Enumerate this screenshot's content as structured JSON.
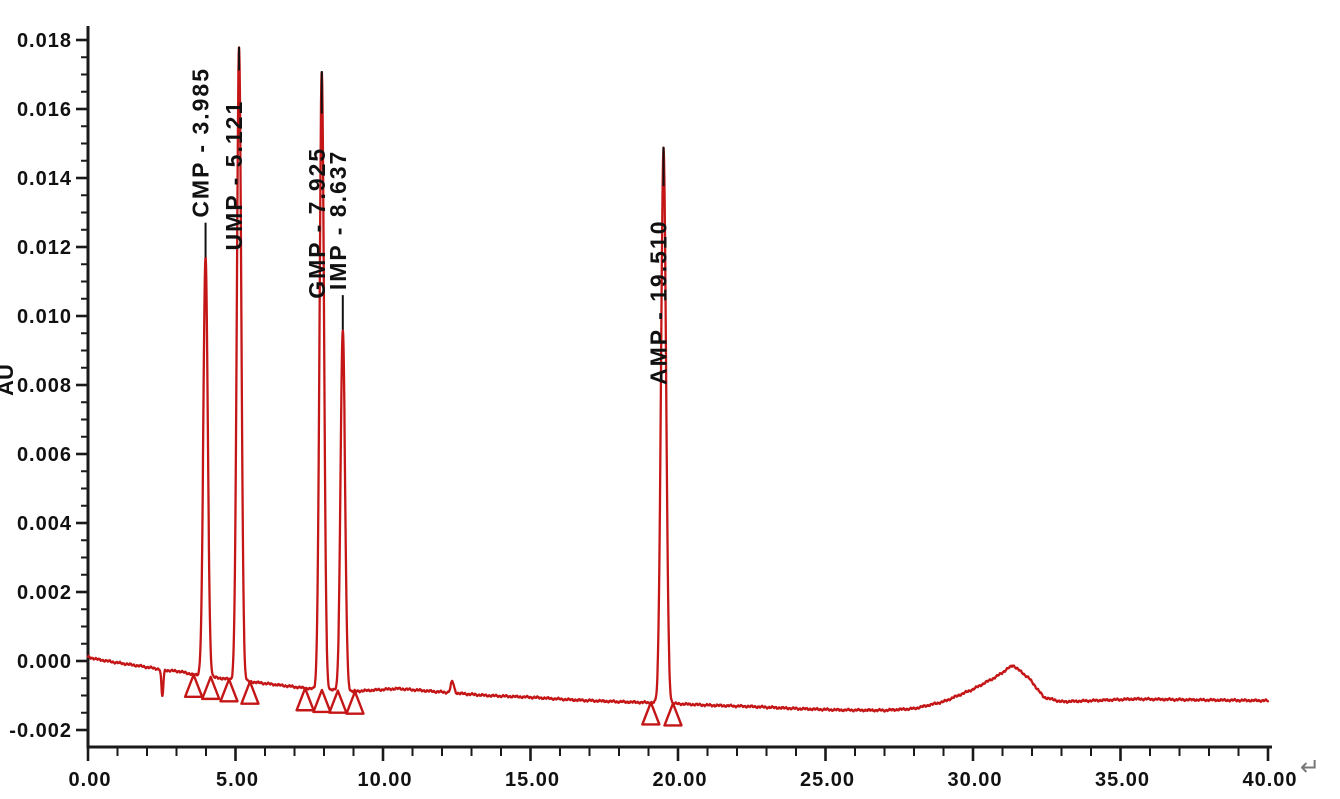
{
  "chart_data": {
    "type": "line",
    "subtype": "hplc-chromatogram",
    "title": "",
    "xlabel": "",
    "ylabel": "AU",
    "xlim": [
      0,
      40
    ],
    "ylim": [
      -0.002,
      0.018
    ],
    "grid": false,
    "legend": "none",
    "trace_color": "#c41616",
    "axis_color": "#1a1a1a",
    "label_color": "#111111",
    "return_mark_color": "#777777",
    "x_ticks": {
      "major_values": [
        0,
        5,
        10,
        15,
        20,
        25,
        30,
        35,
        40
      ],
      "major_labels": [
        "0.00",
        "5.00",
        "10.00",
        "15.00",
        "20.00",
        "25.00",
        "30.00",
        "35.00",
        "40.00"
      ],
      "minor_step": 1
    },
    "y_ticks": {
      "major_values": [
        -0.002,
        0.0,
        0.002,
        0.004,
        0.006,
        0.008,
        0.01,
        0.012,
        0.014,
        0.016,
        0.018
      ],
      "major_labels": [
        "-0.002",
        "0.000",
        "0.002",
        "0.004",
        "0.006",
        "0.008",
        "0.010",
        "0.012",
        "0.014",
        "0.016",
        "0.018"
      ],
      "minor_step": 0.0005
    },
    "peaks": [
      {
        "name": "CMP",
        "label": "CMP - 3.985",
        "rt": 3.985,
        "apex_au": 0.0117,
        "sigma_min": 0.075,
        "label_band_au": [
          0.01285,
          0.0178
        ],
        "leader": "from-bottom"
      },
      {
        "name": "UMP",
        "label": "UMP - 5.121",
        "rt": 5.121,
        "apex_au": 0.0178,
        "sigma_min": 0.075,
        "label_band_au": [
          0.0119,
          0.017
        ],
        "leader": "from-top"
      },
      {
        "name": "GMP",
        "label": "GMP - 7.925",
        "rt": 7.925,
        "apex_au": 0.0171,
        "sigma_min": 0.075,
        "label_band_au": [
          0.0105,
          0.01575
        ],
        "leader": "from-top"
      },
      {
        "name": "IMP",
        "label": "IMP - 8.637",
        "rt": 8.637,
        "apex_au": 0.0096,
        "sigma_min": 0.075,
        "label_band_au": [
          0.01075,
          0.0156
        ],
        "leader": "from-bottom"
      },
      {
        "name": "AMP",
        "label": "AMP - 19.510",
        "rt": 19.51,
        "apex_au": 0.0149,
        "sigma_min": 0.085,
        "label_band_au": [
          0.008,
          0.01365
        ],
        "leader": "from-top"
      }
    ],
    "baseline_anchors": [
      [
        0,
        0.00012
      ],
      [
        0.3,
        5e-05
      ],
      [
        1.0,
        -5e-05
      ],
      [
        1.8,
        -0.00015
      ],
      [
        2.3,
        -0.00022
      ],
      [
        2.75,
        -0.00028
      ],
      [
        3.1,
        -0.0003
      ],
      [
        3.6,
        -0.0004
      ],
      [
        4.5,
        -0.0005
      ],
      [
        5.5,
        -0.0006
      ],
      [
        6.5,
        -0.0007
      ],
      [
        7.5,
        -0.0008
      ],
      [
        9.0,
        -0.00088
      ],
      [
        10.5,
        -0.0008
      ],
      [
        12.0,
        -0.0009
      ],
      [
        13.5,
        -0.001
      ],
      [
        15.0,
        -0.00105
      ],
      [
        16.5,
        -0.00113
      ],
      [
        18.0,
        -0.00118
      ],
      [
        19.5,
        -0.00122
      ],
      [
        21.0,
        -0.00128
      ],
      [
        22.5,
        -0.00132
      ],
      [
        24.0,
        -0.00138
      ],
      [
        25.5,
        -0.00142
      ],
      [
        27.0,
        -0.00143
      ],
      [
        28.0,
        -0.00138
      ],
      [
        29.0,
        -0.00118
      ],
      [
        30.0,
        -0.00082
      ],
      [
        30.8,
        -0.00045
      ],
      [
        31.35,
        -0.00012
      ],
      [
        31.9,
        -0.0005
      ],
      [
        32.4,
        -0.00105
      ],
      [
        33.0,
        -0.00118
      ],
      [
        34.0,
        -0.00115
      ],
      [
        35.5,
        -0.0011
      ],
      [
        37.0,
        -0.00112
      ],
      [
        40.0,
        -0.00115
      ]
    ],
    "baseline_artifacts": [
      {
        "t": 2.52,
        "height_au": -0.00078,
        "sigma_min": 0.033,
        "desc": "sharp negative dip"
      },
      {
        "t": 12.35,
        "height_au": 0.00033,
        "sigma_min": 0.055,
        "desc": "small unlabeled bump"
      }
    ],
    "integration_markers": [
      {
        "t": 3.58,
        "au": -0.0004
      },
      {
        "t": 4.16,
        "au": -0.00046
      },
      {
        "t": 4.78,
        "au": -0.00053
      },
      {
        "t": 5.49,
        "au": -0.0006
      },
      {
        "t": 7.36,
        "au": -0.00079
      },
      {
        "t": 7.93,
        "au": -0.00084
      },
      {
        "t": 8.47,
        "au": -0.00086
      },
      {
        "t": 9.05,
        "au": -0.00089
      },
      {
        "t": 19.08,
        "au": -0.0012
      },
      {
        "t": 19.83,
        "au": -0.00123
      }
    ],
    "trailing_mark": "↵"
  }
}
